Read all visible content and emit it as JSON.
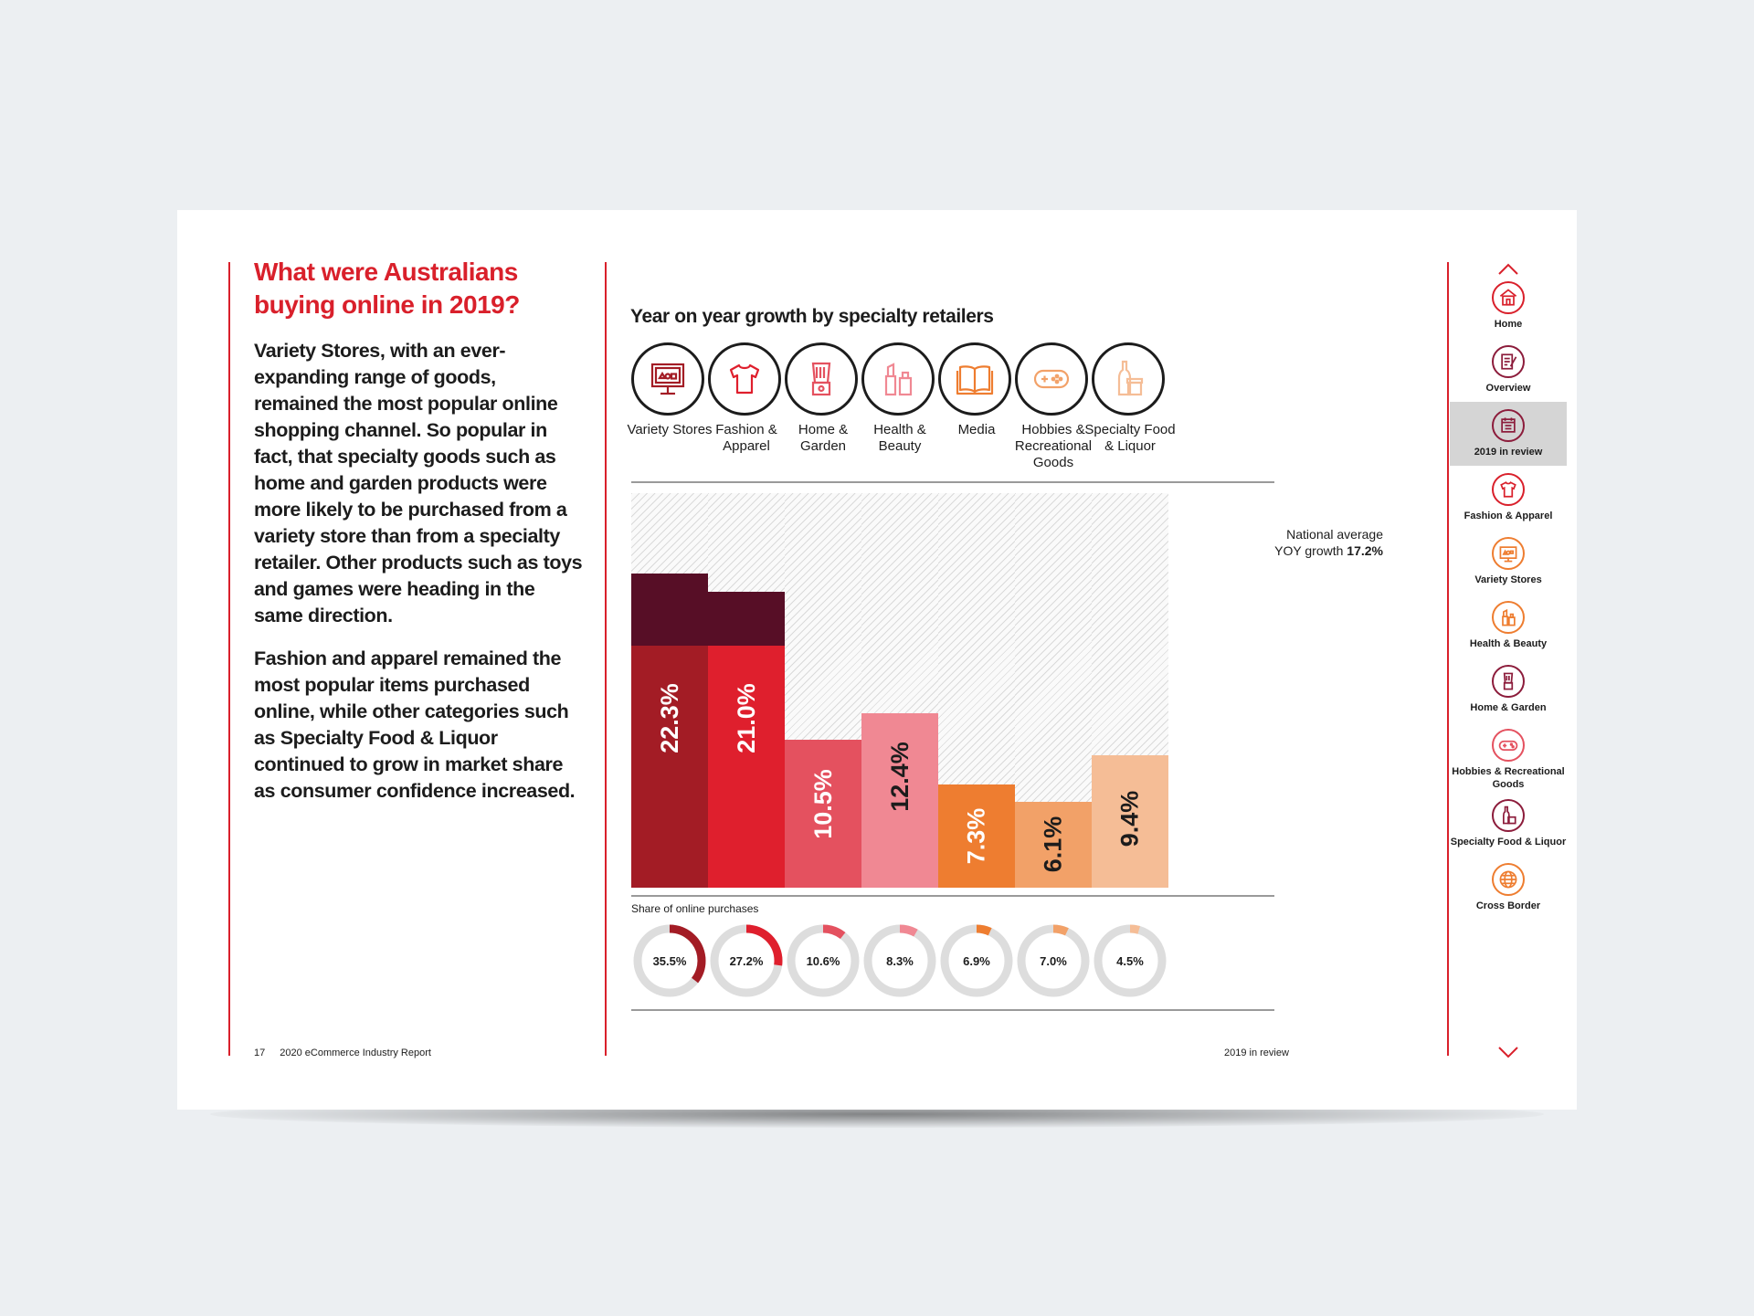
{
  "page": {
    "heading": "What were Australians buying online in 2019?",
    "paragraph1": "Variety Stores, with an ever-expanding range of goods, remained the most popular online shopping channel. So popular in fact, that specialty goods such as home and garden products were more likely to be purchased from a variety store than from a specialty retailer. Other products such as toys and games were heading in the same direction.",
    "paragraph2": "Fashion and apparel remained the most popular items purchased online, while other categories such as Specialty Food & Liquor continued to grow in market share as consumer confidence increased.",
    "page_number": "17",
    "report_title": "2020 eCommerce Industry Report",
    "section_label": "2019 in review"
  },
  "chart_data": {
    "type": "bar",
    "title": "Year on year growth by specialty retailers",
    "categories": [
      "Variety Stores",
      "Fashion & Apparel",
      "Home & Garden",
      "Health & Beauty",
      "Media",
      "Hobbies & Recreational Goods",
      "Specialty Food & Liquor"
    ],
    "series": [
      {
        "values": [
          22.3,
          21.0,
          10.5,
          12.4,
          7.3,
          6.1,
          9.4
        ]
      }
    ],
    "value_labels": [
      "22.3%",
      "21.0%",
      "10.5%",
      "12.4%",
      "7.3%",
      "6.1%",
      "9.4%"
    ],
    "ylim": [
      0,
      28
    ],
    "reference_line": {
      "label_prefix": "National average YOY growth",
      "value_label": "17.2%",
      "value": 17.2
    },
    "colors": [
      "#a31c25",
      "#df1f2d",
      "#e4515f",
      "#f08893",
      "#ee7d30",
      "#f2a168",
      "#f5bd96"
    ],
    "above_average_color": "#570e26",
    "share": {
      "title": "Share of online purchases",
      "values": [
        35.5,
        27.2,
        10.6,
        8.3,
        6.9,
        7.0,
        4.5
      ],
      "labels": [
        "35.5%",
        "27.2%",
        "10.6%",
        "8.3%",
        "6.9%",
        "7.0%",
        "4.5%"
      ],
      "track_color": "#dddddd"
    }
  },
  "categories": [
    {
      "label": "Variety Stores",
      "icon": "monitor-shapes-icon",
      "color": "#a31c25"
    },
    {
      "label": "Fashion & Apparel",
      "icon": "tshirt-icon",
      "color": "#df1f2d"
    },
    {
      "label": "Home & Garden",
      "icon": "blender-icon",
      "color": "#e4515f"
    },
    {
      "label": "Health & Beauty",
      "icon": "cosmetics-icon",
      "color": "#f08893"
    },
    {
      "label": "Media",
      "icon": "open-book-icon",
      "color": "#ee7d30"
    },
    {
      "label": "Hobbies & Recreational Goods",
      "icon": "gamepad-icon",
      "color": "#f2a168"
    },
    {
      "label": "Specialty Food & Liquor",
      "icon": "bottle-jar-icon",
      "color": "#f5bd96"
    }
  ],
  "nav": {
    "items": [
      {
        "label": "Home",
        "icon": "house-icon",
        "color": "#d9202b",
        "active": false
      },
      {
        "label": "Overview",
        "icon": "document-pen-icon",
        "color": "#8c1c3b",
        "active": false
      },
      {
        "label": "2019 in review",
        "icon": "calendar-icon",
        "color": "#8c1c3b",
        "active": true
      },
      {
        "label": "Fashion & Apparel",
        "icon": "tshirt-icon",
        "color": "#d9202b",
        "active": false
      },
      {
        "label": "Variety Stores",
        "icon": "monitor-shapes-icon",
        "color": "#ee7d30",
        "active": false
      },
      {
        "label": "Health & Beauty",
        "icon": "cosmetics-icon",
        "color": "#ee7d30",
        "active": false
      },
      {
        "label": "Home & Garden",
        "icon": "blender-icon",
        "color": "#8c1c3b",
        "active": false
      },
      {
        "label": "Hobbies & Recreational Goods",
        "icon": "gamepad-icon",
        "color": "#e4515f",
        "active": false
      },
      {
        "label": "Specialty Food & Liquor",
        "icon": "bottle-jar-icon",
        "color": "#8c1c3b",
        "active": false
      },
      {
        "label": "Cross Border",
        "icon": "globe-icon",
        "color": "#ee7d30",
        "active": false
      }
    ]
  }
}
